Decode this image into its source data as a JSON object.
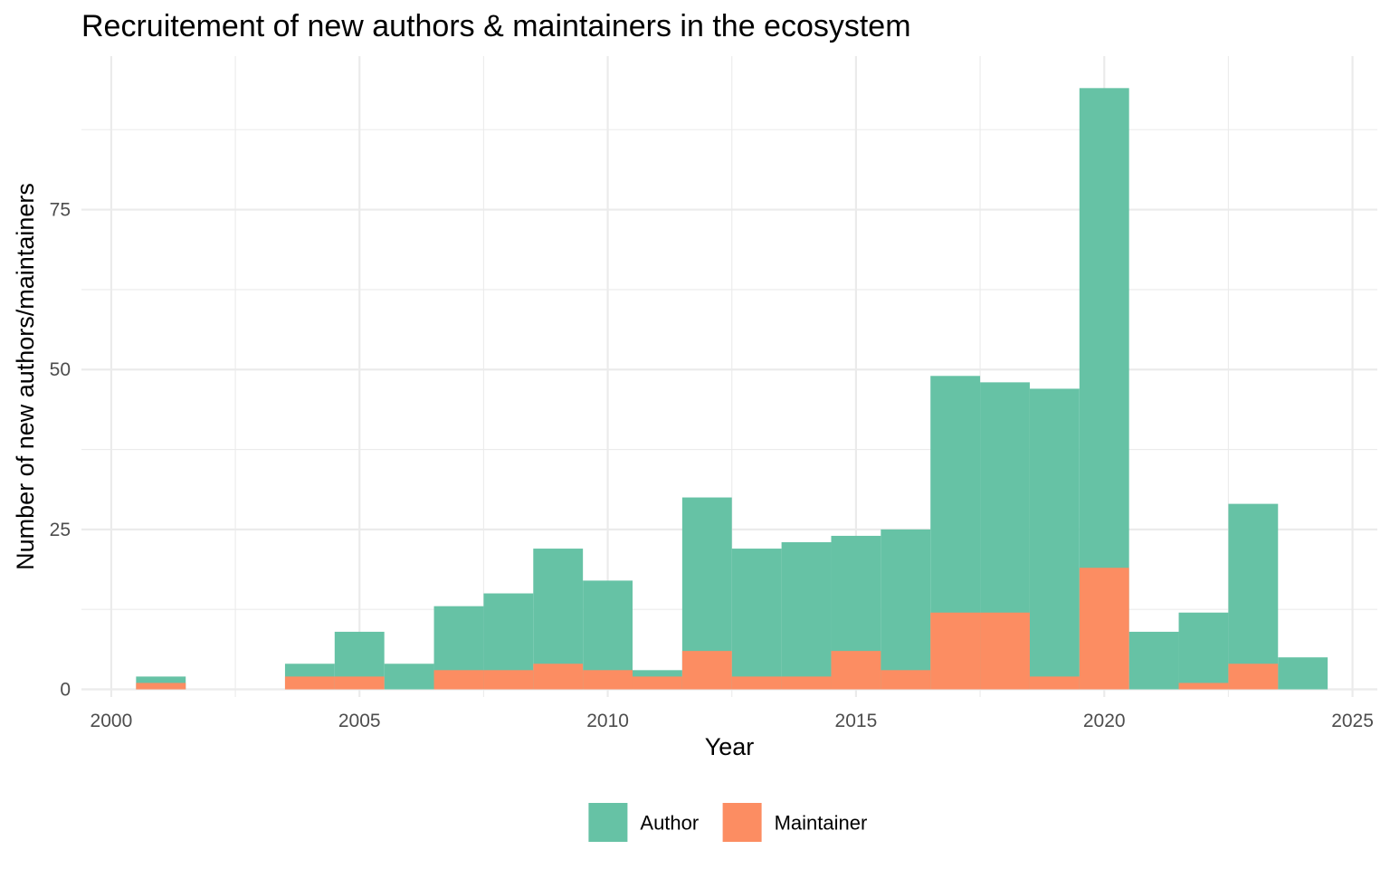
{
  "chart_data": {
    "type": "bar",
    "title": "Recruitement of new authors & maintainers in the ecosystem",
    "xlabel": "Year",
    "ylabel": "Number of new authors/maintainers",
    "x_ticks": [
      "2000",
      "2005",
      "2010",
      "2015",
      "2020",
      "2025"
    ],
    "y_ticks": [
      "0",
      "25",
      "50",
      "75"
    ],
    "xlim": [
      1999.4,
      2025.5
    ],
    "ylim": [
      -1.2,
      99
    ],
    "grid": true,
    "legend_position": "bottom",
    "bin_width": 1,
    "series": [
      {
        "name": "Author",
        "color": "#66c2a5",
        "points": [
          {
            "year": 2001,
            "value": 2
          },
          {
            "year": 2004,
            "value": 4
          },
          {
            "year": 2005,
            "value": 9
          },
          {
            "year": 2006,
            "value": 4
          },
          {
            "year": 2007,
            "value": 13
          },
          {
            "year": 2008,
            "value": 15
          },
          {
            "year": 2009,
            "value": 22
          },
          {
            "year": 2010,
            "value": 17
          },
          {
            "year": 2011,
            "value": 3
          },
          {
            "year": 2012,
            "value": 30
          },
          {
            "year": 2013,
            "value": 22
          },
          {
            "year": 2014,
            "value": 23
          },
          {
            "year": 2015,
            "value": 24
          },
          {
            "year": 2016,
            "value": 25
          },
          {
            "year": 2017,
            "value": 49
          },
          {
            "year": 2018,
            "value": 48
          },
          {
            "year": 2019,
            "value": 47
          },
          {
            "year": 2020,
            "value": 94
          },
          {
            "year": 2021,
            "value": 9
          },
          {
            "year": 2022,
            "value": 12
          },
          {
            "year": 2023,
            "value": 29
          },
          {
            "year": 2024,
            "value": 5
          }
        ]
      },
      {
        "name": "Maintainer",
        "color": "#fc8d62",
        "points": [
          {
            "year": 2001,
            "value": 1
          },
          {
            "year": 2004,
            "value": 2
          },
          {
            "year": 2005,
            "value": 2
          },
          {
            "year": 2007,
            "value": 3
          },
          {
            "year": 2008,
            "value": 3
          },
          {
            "year": 2009,
            "value": 4
          },
          {
            "year": 2010,
            "value": 3
          },
          {
            "year": 2011,
            "value": 2
          },
          {
            "year": 2012,
            "value": 6
          },
          {
            "year": 2013,
            "value": 2
          },
          {
            "year": 2014,
            "value": 2
          },
          {
            "year": 2015,
            "value": 6
          },
          {
            "year": 2016,
            "value": 3
          },
          {
            "year": 2017,
            "value": 12
          },
          {
            "year": 2018,
            "value": 12
          },
          {
            "year": 2019,
            "value": 2
          },
          {
            "year": 2020,
            "value": 19
          },
          {
            "year": 2022,
            "value": 1
          },
          {
            "year": 2023,
            "value": 4
          }
        ]
      }
    ]
  }
}
